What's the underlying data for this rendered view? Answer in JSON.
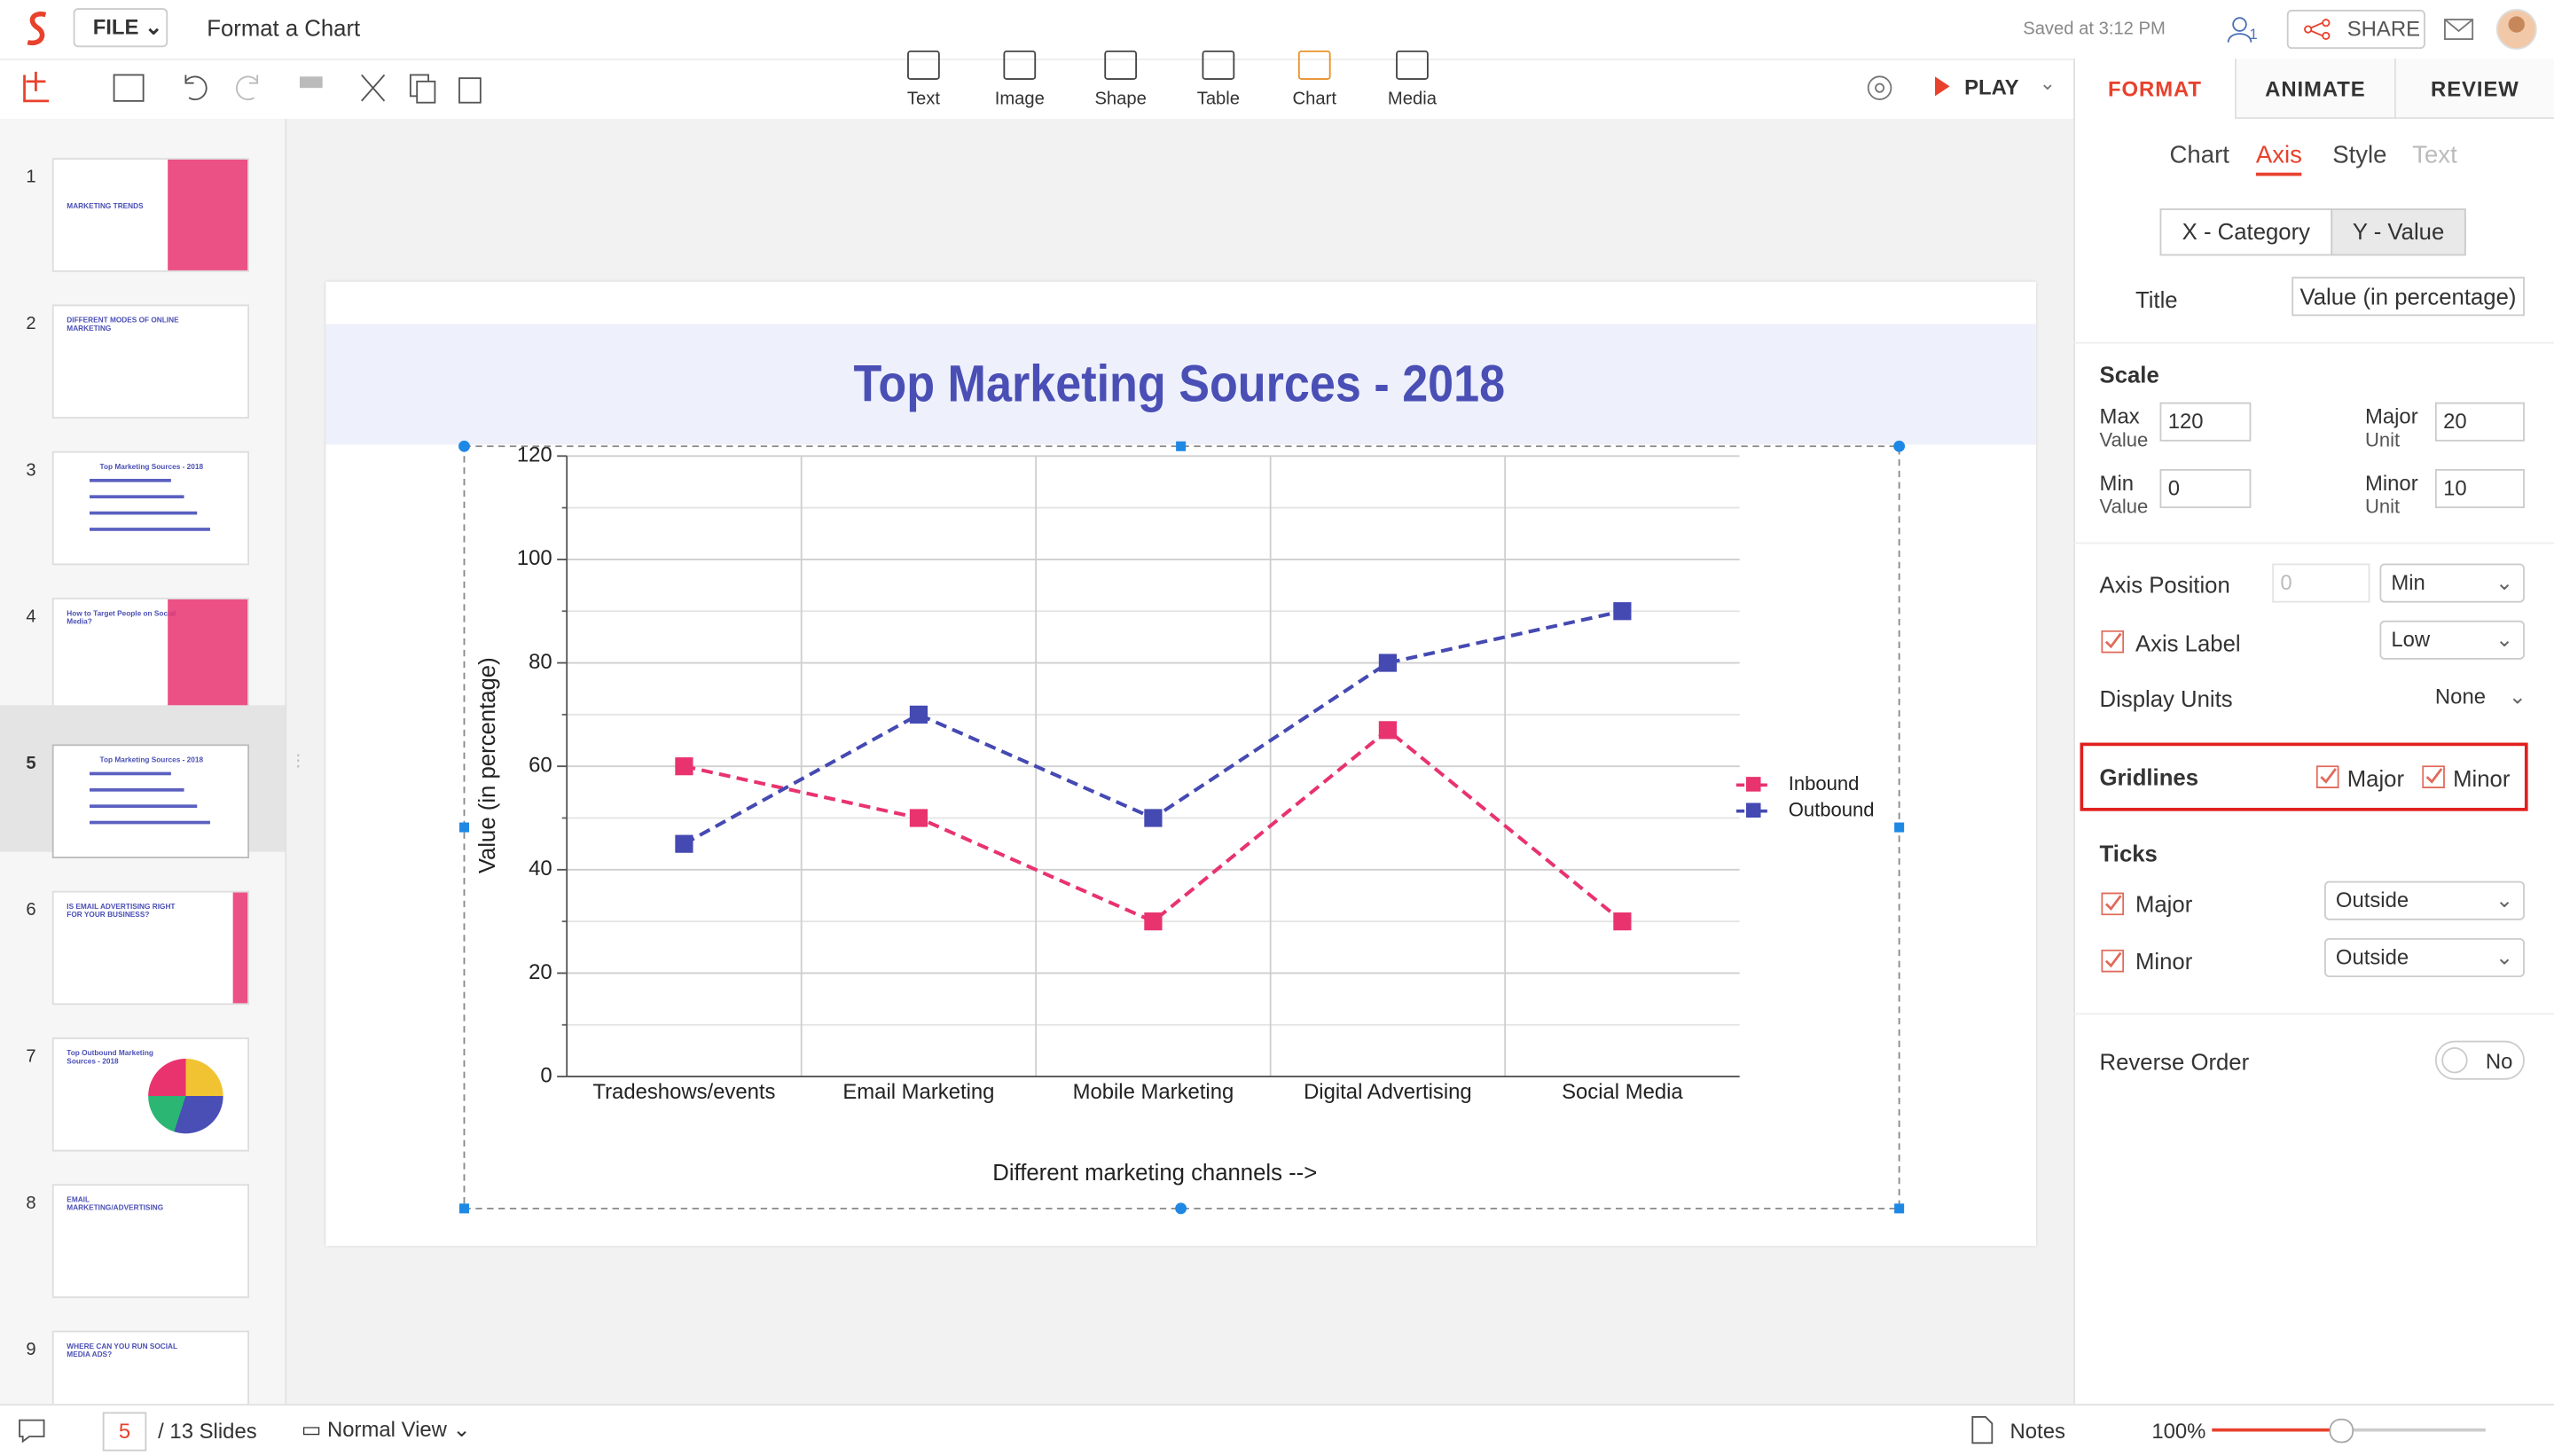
{
  "app": {
    "file_menu": "FILE",
    "doc_title": "Format a Chart",
    "saved": "Saved at 3:12 PM",
    "collab_count": "1",
    "share": "SHARE",
    "insert_tools": [
      "Text",
      "Image",
      "Shape",
      "Table",
      "Chart",
      "Media"
    ],
    "play": "PLAY"
  },
  "panel": {
    "tabs": [
      "FORMAT",
      "ANIMATE",
      "REVIEW"
    ],
    "subtabs": [
      "Chart",
      "Axis",
      "Style",
      "Text"
    ],
    "axis_buttons": [
      "X - Category",
      "Y - Value"
    ],
    "title_label": "Title",
    "title_value": "Value (in percentage)",
    "scale": {
      "heading": "Scale",
      "max": {
        "label": [
          "Max",
          "Value"
        ],
        "value": "120"
      },
      "major": {
        "label": [
          "Major",
          "Unit"
        ],
        "value": "20"
      },
      "min": {
        "label": [
          "Min",
          "Value"
        ],
        "value": "0"
      },
      "minor": {
        "label": [
          "Minor",
          "Unit"
        ],
        "value": "10"
      }
    },
    "axis_position": {
      "label": "Axis Position",
      "value": "0",
      "option": "Min"
    },
    "axis_label": {
      "label": "Axis Label",
      "option": "Low"
    },
    "display_units": {
      "label": "Display Units",
      "option": "None"
    },
    "gridlines": {
      "heading": "Gridlines",
      "major": "Major",
      "minor": "Minor"
    },
    "ticks": {
      "heading": "Ticks",
      "major": {
        "label": "Major",
        "option": "Outside"
      },
      "minor": {
        "label": "Minor",
        "option": "Outside"
      }
    },
    "reverse_order": {
      "label": "Reverse Order",
      "value": "No"
    }
  },
  "slides": [
    {
      "number": "1",
      "caption": "MARKETING TRENDS"
    },
    {
      "number": "2",
      "caption": "DIFFERENT MODES OF ONLINE MARKETING"
    },
    {
      "number": "3",
      "caption": "Top Marketing Sources - 2018"
    },
    {
      "number": "4",
      "caption": "How to Target People on Social Media?"
    },
    {
      "number": "5",
      "caption": "Top Marketing Sources - 2018"
    },
    {
      "number": "6",
      "caption": "IS EMAIL ADVERTISING RIGHT FOR YOUR BUSINESS?"
    },
    {
      "number": "7",
      "caption": "Top Outbound Marketing Sources - 2018"
    },
    {
      "number": "8",
      "caption": "EMAIL MARKETING/ADVERTISING"
    },
    {
      "number": "9",
      "caption": "WHERE CAN YOU RUN SOCIAL MEDIA ADS?"
    }
  ],
  "status": {
    "current": "5",
    "total": "/ 13 Slides",
    "view": "Normal View",
    "notes": "Notes",
    "zoom": "100%"
  },
  "chart_data": {
    "type": "line",
    "title": "Top Marketing Sources - 2018",
    "y_label": "Value (in percentage)",
    "x_label": "Different marketing channels -->",
    "categories": [
      "Tradeshows/events",
      "Email Marketing",
      "Mobile Marketing",
      "Digital Advertising",
      "Social Media"
    ],
    "series": [
      {
        "name": "Inbound",
        "color": "#e8336f",
        "values": [
          60,
          50,
          30,
          67,
          30
        ]
      },
      {
        "name": "Outbound",
        "color": "#4549b2",
        "values": [
          45,
          70,
          50,
          80,
          90
        ]
      }
    ],
    "ylim": [
      0,
      120
    ],
    "yticks": [
      0,
      20,
      40,
      60,
      80,
      100,
      120
    ],
    "minor_yticks": [
      10,
      30,
      50,
      70,
      90,
      110
    ],
    "grid": true,
    "legend": "right",
    "line_style": "dashed",
    "marker": "square"
  }
}
